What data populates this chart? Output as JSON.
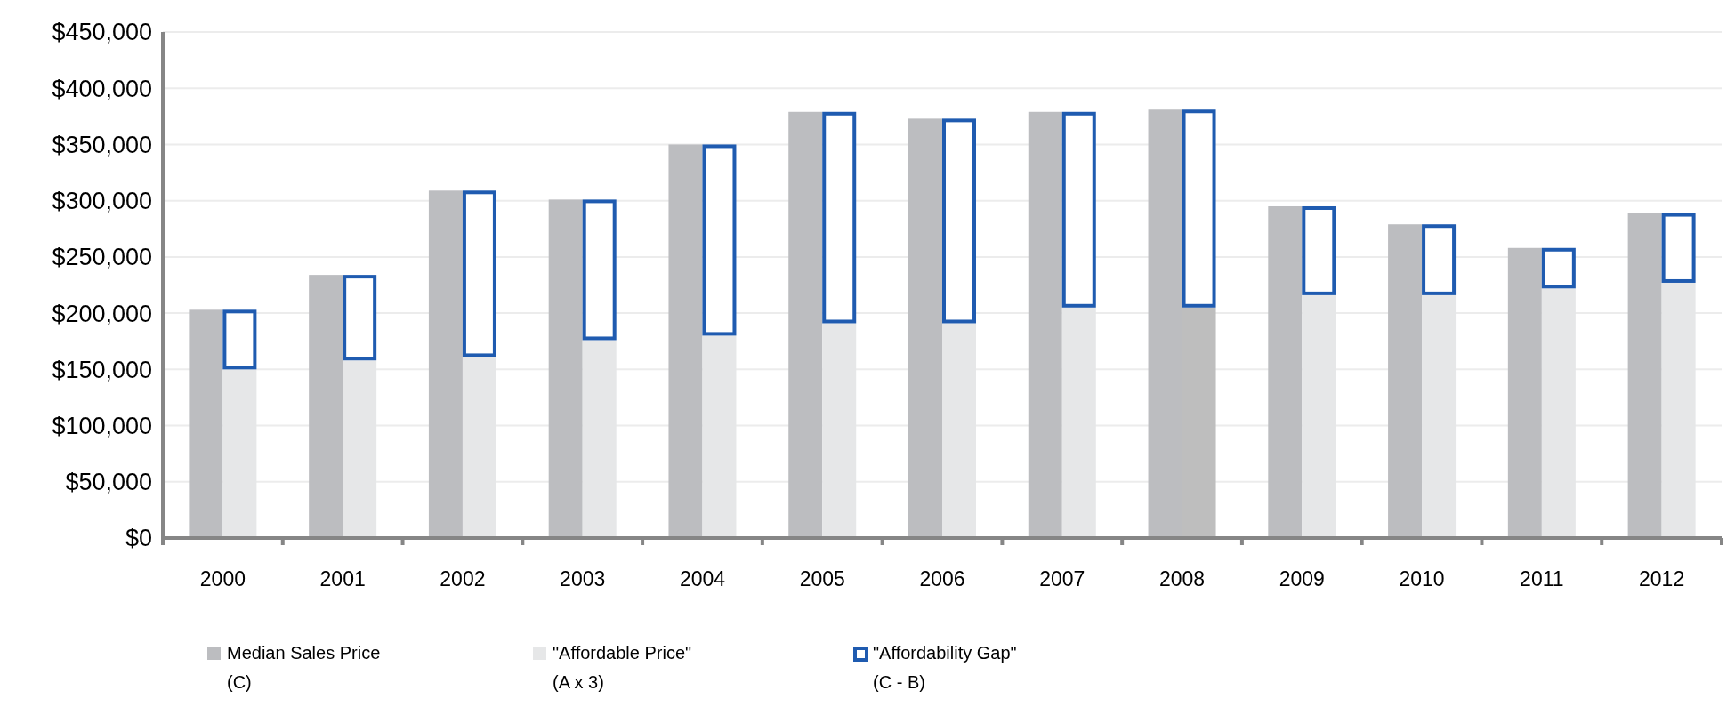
{
  "chart_data": {
    "type": "bar",
    "categories": [
      "2000",
      "2001",
      "2002",
      "2003",
      "2004",
      "2005",
      "2006",
      "2007",
      "2008",
      "2009",
      "2010",
      "2011",
      "2012"
    ],
    "series": [
      {
        "name": "Median Sales Price\n(C)",
        "color": "#bcbdc0",
        "values": [
          203000,
          234000,
          309000,
          301000,
          350000,
          379000,
          373000,
          379000,
          381000,
          295000,
          279000,
          258000,
          289000
        ]
      },
      {
        "name": "\"Affordable Price\"\n(A x 3)",
        "color": "#e6e7e8",
        "colors": [
          "#e6e7e8",
          "#e6e7e8",
          "#e6e7e8",
          "#e6e7e8",
          "#e6e7e8",
          "#e6e7e8",
          "#e6e7e8",
          "#e6e7e8",
          "#bebebe",
          "#e6e7e8",
          "#e6e7e8",
          "#e6e7e8",
          "#e6e7e8"
        ],
        "values": [
          150000,
          158000,
          161000,
          176000,
          180000,
          191000,
          191000,
          205000,
          205000,
          216000,
          216000,
          222000,
          227000
        ]
      },
      {
        "name": "\"Affordability Gap\"\n(C - B)",
        "color": "#1f5bb0",
        "base": [
          150000,
          158000,
          161000,
          176000,
          180000,
          191000,
          191000,
          205000,
          205000,
          216000,
          216000,
          222000,
          227000
        ],
        "values": [
          53000,
          76000,
          148000,
          125000,
          170000,
          188000,
          182000,
          174000,
          176000,
          79000,
          63000,
          36000,
          62000
        ]
      }
    ],
    "ylim": [
      0,
      450000
    ],
    "yticks": [
      {
        "value": 0,
        "label": "$0"
      },
      {
        "value": 50000,
        "label": "$50,000"
      },
      {
        "value": 100000,
        "label": "$100,000"
      },
      {
        "value": 150000,
        "label": "$150,000"
      },
      {
        "value": 200000,
        "label": "$200,000"
      },
      {
        "value": 250000,
        "label": "$250,000"
      },
      {
        "value": 300000,
        "label": "$300,000"
      },
      {
        "value": 350000,
        "label": "$350,000"
      },
      {
        "value": 400000,
        "label": "$400,000"
      },
      {
        "value": 450000,
        "label": "$450,000"
      }
    ],
    "grid": "y",
    "legend": "bottom"
  }
}
